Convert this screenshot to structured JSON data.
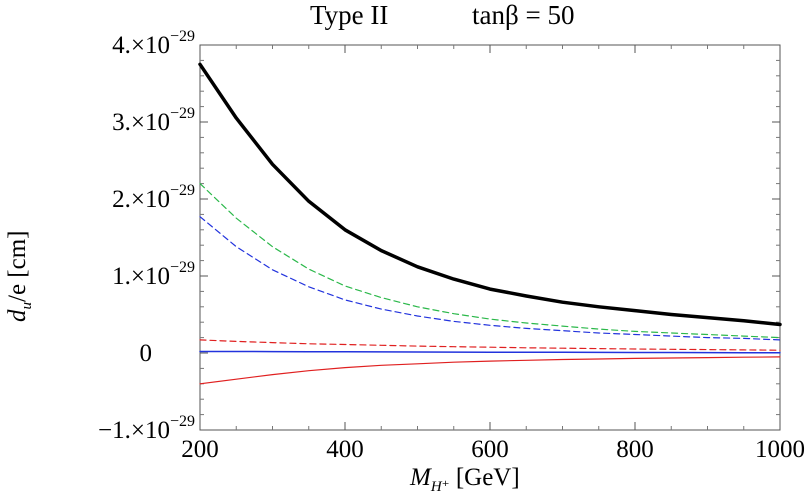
{
  "title": {
    "type_label": "Type II",
    "tan_label": "tanβ = 50"
  },
  "chart_data": {
    "type": "line",
    "xlabel": "M_{H⁺} [GeV]",
    "ylabel": "d_u/e [cm]",
    "xlim": [
      200,
      1000
    ],
    "ylim": [
      -1e-29,
      4e-29
    ],
    "grid": false,
    "x_ticks": [
      200,
      400,
      600,
      800,
      1000
    ],
    "x_tick_labels": [
      "200",
      "400",
      "600",
      "800",
      "1000"
    ],
    "y_ticks": [
      -1e-29,
      0,
      1e-29,
      2e-29,
      3e-29,
      4e-29
    ],
    "y_tick_labels": [
      "−1.×10",
      "0",
      "1.×10",
      "2.×10",
      "3.×10",
      "4.×10"
    ],
    "y_tick_exponent": "−29",
    "x": [
      200,
      250,
      300,
      350,
      400,
      450,
      500,
      550,
      600,
      650,
      700,
      750,
      800,
      850,
      900,
      950,
      1000
    ],
    "series": [
      {
        "color": "#000000",
        "style": "solid",
        "width": 3.5,
        "values": [
          3.75e-29,
          3.05e-29,
          2.45e-29,
          1.97e-29,
          1.6e-29,
          1.33e-29,
          1.12e-29,
          9.6e-30,
          8.3e-30,
          7.4e-30,
          6.6e-30,
          6e-30,
          5.5e-30,
          5e-30,
          4.6e-30,
          4.2e-30,
          3.7e-30
        ]
      },
      {
        "color": "#2bb84a",
        "style": "dashed",
        "width": 1.2,
        "values": [
          2.2e-29,
          1.75e-29,
          1.38e-29,
          1.09e-29,
          8.7e-30,
          7.2e-30,
          6e-30,
          5.1e-30,
          4.4e-30,
          3.9e-30,
          3.5e-30,
          3.1e-30,
          2.8e-30,
          2.6e-30,
          2.4e-30,
          2.2e-30,
          2e-30
        ]
      },
      {
        "color": "#2233dd",
        "style": "dashed",
        "width": 1.2,
        "values": [
          1.77e-29,
          1.38e-29,
          1.08e-29,
          8.6e-30,
          6.9e-30,
          5.7e-30,
          4.8e-30,
          4.1e-30,
          3.6e-30,
          3.2e-30,
          2.9e-30,
          2.6e-30,
          2.4e-30,
          2.2e-30,
          2e-30,
          1.9e-30,
          1.7e-30
        ]
      },
      {
        "color": "#e02020",
        "style": "dashed",
        "width": 1.2,
        "values": [
          1.7e-30,
          1.5e-30,
          1.35e-30,
          1.2e-30,
          1.1e-30,
          1e-30,
          9e-31,
          8.2e-31,
          7.5e-31,
          6.8e-31,
          6.2e-31,
          5.7e-31,
          5.2e-31,
          4.8e-31,
          4.4e-31,
          4e-31,
          3.6e-31
        ]
      },
      {
        "color": "#2233dd",
        "style": "solid",
        "width": 1.5,
        "values": [
          2e-31,
          2e-31,
          1.8e-31,
          1.6e-31,
          1.5e-31,
          1.4e-31,
          1.3e-31,
          1.2e-31,
          1.1e-31,
          1e-31,
          9e-32,
          8e-32,
          7e-32,
          6e-32,
          5e-32,
          4e-32,
          3e-32
        ]
      },
      {
        "color": "#e02020",
        "style": "solid",
        "width": 1.2,
        "values": [
          -4e-30,
          -3.4e-30,
          -2.8e-30,
          -2.3e-30,
          -1.9e-30,
          -1.6e-30,
          -1.4e-30,
          -1.2e-30,
          -1.05e-30,
          -9.5e-31,
          -8.5e-31,
          -7.8e-31,
          -7e-31,
          -6.5e-31,
          -6e-31,
          -5.5e-31,
          -5e-31
        ]
      }
    ]
  }
}
